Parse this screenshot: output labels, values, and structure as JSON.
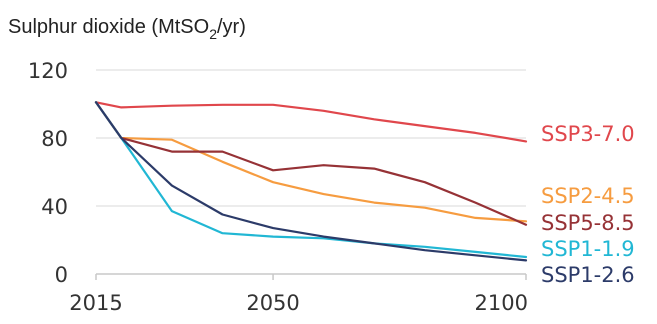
{
  "chart_data": {
    "type": "line",
    "title_main": "Sulphur dioxide (MtSO",
    "title_sub": "2",
    "title_end": "/yr)",
    "xlabel": "",
    "ylabel": "",
    "xlim": [
      2015,
      2100
    ],
    "ylim": [
      0,
      120
    ],
    "yticks": [
      0,
      40,
      80,
      120
    ],
    "xticks": [
      2015,
      2050,
      2100
    ],
    "ytick_labels": [
      "0",
      "40",
      "80",
      "120"
    ],
    "xtick_labels": [
      "2015",
      "2050",
      "2100"
    ],
    "grid": true,
    "legend_placement": "right, inline at line ends",
    "series": [
      {
        "name": "SSP3-7.0",
        "color": "#e0474c",
        "x": [
          2015,
          2020,
          2030,
          2040,
          2050,
          2060,
          2070,
          2080,
          2090,
          2100
        ],
        "y": [
          101,
          98,
          99,
          99.5,
          99.5,
          96,
          91,
          87,
          83,
          78
        ]
      },
      {
        "name": "SSP2-4.5",
        "color": "#f69c40",
        "x": [
          2015,
          2020,
          2030,
          2040,
          2050,
          2060,
          2070,
          2080,
          2090,
          2100
        ],
        "y": [
          101,
          80,
          79,
          66,
          54,
          47,
          42,
          39,
          33,
          31
        ]
      },
      {
        "name": "SSP5-8.5",
        "color": "#963236",
        "x": [
          2015,
          2020,
          2030,
          2040,
          2050,
          2060,
          2070,
          2080,
          2090,
          2100
        ],
        "y": [
          101,
          80,
          72,
          72,
          61,
          64,
          62,
          54,
          42,
          29
        ]
      },
      {
        "name": "SSP1-1.9",
        "color": "#21b7d4",
        "x": [
          2015,
          2020,
          2030,
          2040,
          2050,
          2060,
          2070,
          2080,
          2090,
          2100
        ],
        "y": [
          101,
          80,
          37,
          24,
          22,
          21,
          18,
          16,
          13,
          10
        ]
      },
      {
        "name": "SSP1-2.6",
        "color": "#2c3b69",
        "x": [
          2015,
          2020,
          2030,
          2040,
          2050,
          2060,
          2070,
          2080,
          2090,
          2100
        ],
        "y": [
          101,
          80,
          52,
          35,
          27,
          22,
          18,
          14,
          11,
          8
        ]
      }
    ]
  }
}
